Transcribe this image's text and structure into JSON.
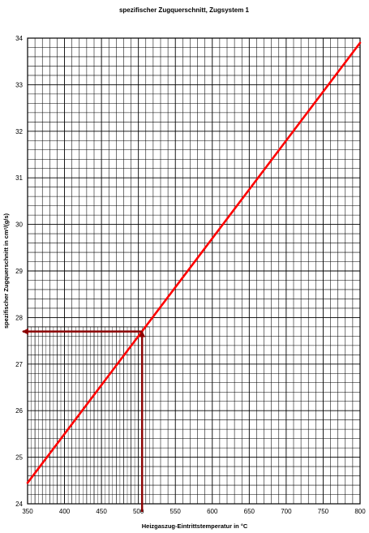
{
  "chart_data": {
    "type": "line",
    "title": "spezifischer Zugquerschnitt, Zugsystem 1",
    "xlabel": "Heizgaszug-Eintrittstemperatur in °C",
    "ylabel": "spezifischer Zugquerschnitt in cm²/(g/s)",
    "xlim": [
      350,
      800
    ],
    "ylim": [
      24,
      34
    ],
    "xticks": [
      "350",
      "400",
      "450",
      "500",
      "550",
      "600",
      "650",
      "700",
      "750",
      "800"
    ],
    "yticks": [
      "24",
      "25",
      "26",
      "27",
      "28",
      "29",
      "30",
      "31",
      "32",
      "33",
      "34"
    ],
    "x_minor_step": 10,
    "y_minor_step": 0.2,
    "fine_grid_region": {
      "x": [
        350,
        515
      ],
      "y": [
        24,
        27.8
      ],
      "x_step": 5,
      "y_step": 0.2
    },
    "grid": true,
    "series": [
      {
        "color": "#ff0000",
        "x": [
          350,
          800
        ],
        "y": [
          24.45,
          33.9
        ]
      }
    ],
    "annotations": [
      {
        "type": "reading-arrows",
        "color": "#8b0000",
        "from_x": 505,
        "to_y": 27.7
      }
    ]
  }
}
